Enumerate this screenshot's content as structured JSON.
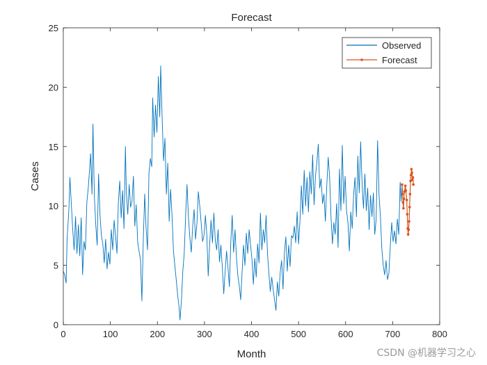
{
  "chart_data": {
    "type": "line",
    "title": "Forecast",
    "xlabel": "Month",
    "ylabel": "Cases",
    "xlim": [
      0,
      800
    ],
    "ylim": [
      0,
      25
    ],
    "xticks": [
      0,
      100,
      200,
      300,
      400,
      500,
      600,
      700,
      800
    ],
    "yticks": [
      0,
      5,
      10,
      15,
      20,
      25
    ],
    "legend_position": "top-right",
    "series": [
      {
        "name": "Observed",
        "color": "#0072BD",
        "marker": "none",
        "points": [
          [
            0,
            4.5
          ],
          [
            3,
            4.2
          ],
          [
            6,
            3.5
          ],
          [
            8,
            7.2
          ],
          [
            12,
            9.8
          ],
          [
            14,
            12.4
          ],
          [
            17,
            10.2
          ],
          [
            20,
            8.0
          ],
          [
            23,
            6.3
          ],
          [
            26,
            9.1
          ],
          [
            29,
            6.0
          ],
          [
            32,
            8.4
          ],
          [
            35,
            5.8
          ],
          [
            38,
            9.0
          ],
          [
            41,
            4.2
          ],
          [
            44,
            7.0
          ],
          [
            47,
            6.3
          ],
          [
            50,
            10.3
          ],
          [
            53,
            11.5
          ],
          [
            56,
            13.2
          ],
          [
            58,
            14.4
          ],
          [
            61,
            11.0
          ],
          [
            63,
            16.9
          ],
          [
            66,
            10.8
          ],
          [
            69,
            8.4
          ],
          [
            72,
            6.7
          ],
          [
            75,
            12.7
          ],
          [
            78,
            9.2
          ],
          [
            81,
            7.5
          ],
          [
            84,
            6.8
          ],
          [
            87,
            5.2
          ],
          [
            90,
            7.2
          ],
          [
            93,
            4.7
          ],
          [
            96,
            6.1
          ],
          [
            99,
            5.1
          ],
          [
            102,
            8.0
          ],
          [
            105,
            6.3
          ],
          [
            108,
            8.8
          ],
          [
            111,
            7.5
          ],
          [
            114,
            6.0
          ],
          [
            117,
            10.3
          ],
          [
            120,
            12.1
          ],
          [
            123,
            9.0
          ],
          [
            126,
            11.3
          ],
          [
            129,
            8.1
          ],
          [
            132,
            15.0
          ],
          [
            134,
            11.1
          ],
          [
            137,
            9.3
          ],
          [
            140,
            11.8
          ],
          [
            143,
            9.9
          ],
          [
            146,
            10.4
          ],
          [
            149,
            12.5
          ],
          [
            152,
            8.3
          ],
          [
            155,
            10.1
          ],
          [
            158,
            7.0
          ],
          [
            161,
            6.2
          ],
          [
            164,
            5.5
          ],
          [
            167,
            2.0
          ],
          [
            170,
            7.1
          ],
          [
            173,
            11.0
          ],
          [
            176,
            8.1
          ],
          [
            179,
            6.3
          ],
          [
            182,
            12.7
          ],
          [
            185,
            14.0
          ],
          [
            188,
            13.3
          ],
          [
            190,
            19.1
          ],
          [
            193,
            15.8
          ],
          [
            196,
            18.5
          ],
          [
            199,
            16.2
          ],
          [
            202,
            20.9
          ],
          [
            205,
            17.5
          ],
          [
            207,
            21.8
          ],
          [
            210,
            17.5
          ],
          [
            213,
            13.8
          ],
          [
            216,
            15.7
          ],
          [
            219,
            11.0
          ],
          [
            222,
            13.6
          ],
          [
            225,
            8.7
          ],
          [
            228,
            11.4
          ],
          [
            231,
            9.3
          ],
          [
            234,
            6.3
          ],
          [
            237,
            5.0
          ],
          [
            240,
            3.8
          ],
          [
            243,
            2.5
          ],
          [
            246,
            1.5
          ],
          [
            248,
            0.4
          ],
          [
            251,
            2.0
          ],
          [
            254,
            4.5
          ],
          [
            257,
            6.0
          ],
          [
            260,
            9.2
          ],
          [
            263,
            11.8
          ],
          [
            266,
            9.0
          ],
          [
            269,
            7.3
          ],
          [
            272,
            6.1
          ],
          [
            275,
            8.3
          ],
          [
            278,
            9.7
          ],
          [
            281,
            7.2
          ],
          [
            284,
            8.5
          ],
          [
            287,
            11.2
          ],
          [
            290,
            10.0
          ],
          [
            293,
            8.6
          ],
          [
            296,
            7.0
          ],
          [
            299,
            7.5
          ],
          [
            302,
            9.2
          ],
          [
            305,
            7.6
          ],
          [
            308,
            4.1
          ],
          [
            311,
            6.7
          ],
          [
            314,
            8.8
          ],
          [
            317,
            6.9
          ],
          [
            320,
            9.4
          ],
          [
            323,
            7.1
          ],
          [
            326,
            6.3
          ],
          [
            329,
            8.0
          ],
          [
            332,
            5.3
          ],
          [
            335,
            6.7
          ],
          [
            338,
            4.8
          ],
          [
            341,
            2.6
          ],
          [
            344,
            4.5
          ],
          [
            347,
            6.2
          ],
          [
            350,
            4.8
          ],
          [
            353,
            3.2
          ],
          [
            356,
            7.0
          ],
          [
            359,
            9.2
          ],
          [
            362,
            6.1
          ],
          [
            365,
            8.0
          ],
          [
            368,
            5.7
          ],
          [
            371,
            4.1
          ],
          [
            374,
            3.3
          ],
          [
            377,
            2.1
          ],
          [
            380,
            4.4
          ],
          [
            383,
            6.7
          ],
          [
            386,
            5.0
          ],
          [
            389,
            7.7
          ],
          [
            392,
            6.0
          ],
          [
            395,
            8.0
          ],
          [
            398,
            6.7
          ],
          [
            401,
            5.5
          ],
          [
            404,
            3.4
          ],
          [
            407,
            5.6
          ],
          [
            410,
            4.0
          ],
          [
            413,
            6.8
          ],
          [
            416,
            5.2
          ],
          [
            419,
            9.4
          ],
          [
            422,
            6.3
          ],
          [
            425,
            8.0
          ],
          [
            428,
            6.9
          ],
          [
            431,
            9.2
          ],
          [
            434,
            6.0
          ],
          [
            437,
            4.3
          ],
          [
            440,
            2.8
          ],
          [
            443,
            4.0
          ],
          [
            446,
            3.0
          ],
          [
            449,
            2.1
          ],
          [
            452,
            1.2
          ],
          [
            455,
            3.6
          ],
          [
            458,
            2.4
          ],
          [
            461,
            4.4
          ],
          [
            464,
            5.4
          ],
          [
            467,
            3.0
          ],
          [
            470,
            6.1
          ],
          [
            473,
            7.4
          ],
          [
            476,
            4.5
          ],
          [
            479,
            6.7
          ],
          [
            482,
            4.9
          ],
          [
            485,
            7.5
          ],
          [
            488,
            7.3
          ],
          [
            491,
            8.3
          ],
          [
            494,
            6.9
          ],
          [
            497,
            9.5
          ],
          [
            500,
            6.8
          ],
          [
            503,
            8.7
          ],
          [
            506,
            11.7
          ],
          [
            509,
            9.3
          ],
          [
            512,
            13.0
          ],
          [
            515,
            10.0
          ],
          [
            518,
            12.4
          ],
          [
            521,
            9.5
          ],
          [
            524,
            12.9
          ],
          [
            527,
            11.0
          ],
          [
            530,
            14.3
          ],
          [
            533,
            10.1
          ],
          [
            536,
            12.5
          ],
          [
            539,
            13.7
          ],
          [
            542,
            15.2
          ],
          [
            545,
            11.5
          ],
          [
            548,
            12.3
          ],
          [
            551,
            10.2
          ],
          [
            554,
            11.0
          ],
          [
            557,
            8.7
          ],
          [
            560,
            11.7
          ],
          [
            563,
            14.1
          ],
          [
            566,
            12.5
          ],
          [
            569,
            9.1
          ],
          [
            572,
            6.8
          ],
          [
            575,
            8.6
          ],
          [
            578,
            7.6
          ],
          [
            581,
            10.2
          ],
          [
            584,
            6.5
          ],
          [
            587,
            13.1
          ],
          [
            590,
            9.6
          ],
          [
            593,
            15.1
          ],
          [
            596,
            10.2
          ],
          [
            599,
            12.5
          ],
          [
            602,
            9.6
          ],
          [
            605,
            8.6
          ],
          [
            608,
            6.2
          ],
          [
            611,
            9.5
          ],
          [
            614,
            8.1
          ],
          [
            617,
            10.9
          ],
          [
            620,
            12.4
          ],
          [
            623,
            9.1
          ],
          [
            626,
            14.2
          ],
          [
            629,
            11.1
          ],
          [
            632,
            15.4
          ],
          [
            635,
            11.9
          ],
          [
            638,
            9.8
          ],
          [
            641,
            12.7
          ],
          [
            644,
            9.6
          ],
          [
            647,
            11.5
          ],
          [
            650,
            8.0
          ],
          [
            653,
            10.9
          ],
          [
            656,
            9.1
          ],
          [
            659,
            11.1
          ],
          [
            662,
            7.6
          ],
          [
            665,
            8.9
          ],
          [
            668,
            15.5
          ],
          [
            671,
            11.0
          ],
          [
            674,
            9.1
          ],
          [
            677,
            6.4
          ],
          [
            680,
            5.0
          ],
          [
            683,
            4.2
          ],
          [
            686,
            5.4
          ],
          [
            689,
            3.8
          ],
          [
            692,
            4.3
          ],
          [
            695,
            6.6
          ],
          [
            698,
            8.6
          ],
          [
            701,
            7.0
          ],
          [
            704,
            7.9
          ],
          [
            707,
            6.8
          ],
          [
            710,
            8.9
          ],
          [
            713,
            7.6
          ],
          [
            716,
            12.0
          ],
          [
            718,
            10.4
          ],
          [
            720,
            11.8
          ]
        ]
      },
      {
        "name": "Forecast",
        "color": "#D95319",
        "marker": "dot",
        "points": [
          [
            720,
            11.8
          ],
          [
            721,
            11.0
          ],
          [
            722,
            10.3
          ],
          [
            723,
            9.8
          ],
          [
            724,
            10.6
          ],
          [
            725,
            11.2
          ],
          [
            727,
            11.7
          ],
          [
            728,
            11.3
          ],
          [
            730,
            10.5
          ],
          [
            731,
            9.3
          ],
          [
            732,
            8.1
          ],
          [
            733,
            7.6
          ],
          [
            734,
            8.0
          ],
          [
            735,
            8.7
          ],
          [
            736,
            9.9
          ],
          [
            737,
            11.0
          ],
          [
            738,
            12.1
          ],
          [
            739,
            12.6
          ],
          [
            740,
            13.1
          ],
          [
            741,
            12.8
          ],
          [
            742,
            12.2
          ],
          [
            743,
            12.4
          ],
          [
            744,
            11.8
          ]
        ]
      }
    ]
  },
  "watermark": "CSDN @机器学习之心"
}
